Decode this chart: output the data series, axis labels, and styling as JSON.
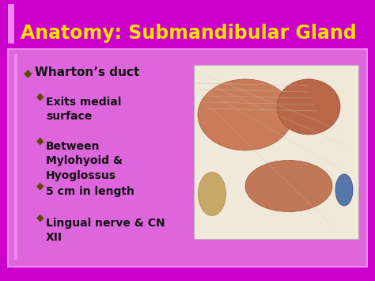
{
  "title": "Anatomy: Submandibular Gland",
  "title_color": "#FFE000",
  "title_fontsize": 17,
  "title_bold": true,
  "outer_bg_color": "#CC00CC",
  "content_bg_color": "#DD66DD",
  "left_accent_color": "#EE88EE",
  "bullet1": "Wharton’s duct",
  "bullet1_color": "#111111",
  "bullet1_marker_color": "#5C4A00",
  "sub_bullets": [
    "Exits medial\nsurface",
    "Between\nMylohyoid &\nHyoglossus",
    "5 cm in length",
    "Lingual nerve & CN\nXII"
  ],
  "sub_bullet_color": "#111111",
  "sub_bullet_marker_color": "#5C4A00",
  "bullet_fontsize": 11,
  "sub_bullet_fontsize": 10,
  "content_border_color": "#EE88EE",
  "img_bg": "#F5DEB3"
}
